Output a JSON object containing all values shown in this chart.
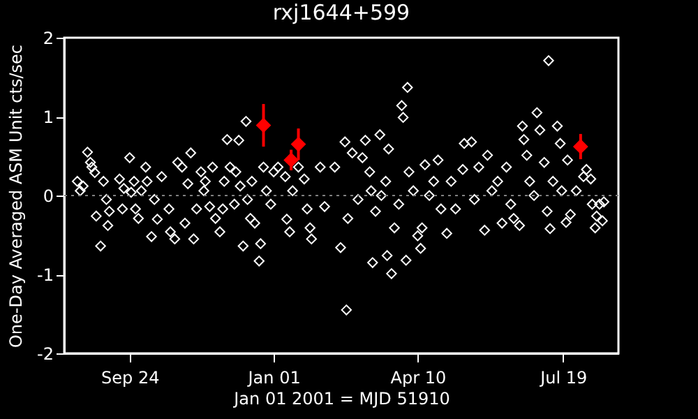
{
  "chart_data": {
    "type": "scatter",
    "title": "rxj1644+599",
    "xlabel": "Jan 01 2001 = MJD 51910",
    "ylabel": "One-Day Averaged ASM Unit cts/sec",
    "xlim": [
      "2000-08-10",
      "2001-08-26"
    ],
    "xticks": [
      {
        "value": "2000-09-24",
        "label": "Sep 24"
      },
      {
        "value": "2001-01-01",
        "label": "Jan 01"
      },
      {
        "value": "2001-04-10",
        "label": "Apr 10"
      },
      {
        "value": "2001-07-19",
        "label": "Jul 19"
      }
    ],
    "ylim": [
      -2,
      2
    ],
    "yticks": [
      -2,
      -1,
      0,
      1,
      2
    ],
    "marker": "diamond",
    "ref_lines": [
      {
        "axis": "y",
        "value": 0,
        "color": "#808080",
        "line_style": "dotted"
      }
    ],
    "series": [
      {
        "color": "#ffffff",
        "x": [
          "2000-08-19",
          "2000-08-21",
          "2000-08-23",
          "2000-08-26",
          "2000-08-28",
          "2000-08-29",
          "2000-08-31",
          "2000-09-01",
          "2000-09-04",
          "2000-09-06",
          "2000-09-08",
          "2000-09-09",
          "2000-09-10",
          "2000-09-17",
          "2000-09-19",
          "2000-09-20",
          "2000-09-24",
          "2000-09-25",
          "2000-09-27",
          "2000-09-28",
          "2000-09-30",
          "2000-10-02",
          "2000-10-05",
          "2000-10-06",
          "2000-10-09",
          "2000-10-11",
          "2000-10-13",
          "2000-10-16",
          "2000-10-21",
          "2000-10-22",
          "2000-10-25",
          "2000-10-27",
          "2000-10-30",
          "2000-11-01",
          "2000-11-03",
          "2000-11-05",
          "2000-11-07",
          "2000-11-09",
          "2000-11-12",
          "2000-11-14",
          "2000-11-15",
          "2000-11-18",
          "2000-11-20",
          "2000-11-22",
          "2000-11-25",
          "2000-11-27",
          "2000-11-28",
          "2000-11-30",
          "2000-12-02",
          "2000-12-05",
          "2000-12-06",
          "2000-12-08",
          "2000-12-09",
          "2000-12-11",
          "2000-12-13",
          "2000-12-14",
          "2000-12-16",
          "2000-12-17",
          "2000-12-19",
          "2000-12-22",
          "2000-12-23",
          "2000-12-25",
          "2000-12-27",
          "2000-12-30",
          "2001-01-01",
          "2001-01-04",
          "2001-01-09",
          "2001-01-10",
          "2001-01-12",
          "2001-01-14",
          "2001-01-18",
          "2001-01-22",
          "2001-01-24",
          "2001-01-26",
          "2001-01-27",
          "2001-02-02",
          "2001-02-05",
          "2001-02-12",
          "2001-02-16",
          "2001-02-19",
          "2001-02-20",
          "2001-02-21",
          "2001-02-24",
          "2001-02-28",
          "2001-03-03",
          "2001-03-05",
          "2001-03-08",
          "2001-03-09",
          "2001-03-10",
          "2001-03-12",
          "2001-03-15",
          "2001-03-16",
          "2001-03-19",
          "2001-03-20",
          "2001-03-21",
          "2001-03-23",
          "2001-03-25",
          "2001-03-28",
          "2001-03-30",
          "2001-03-31",
          "2001-04-03",
          "2001-04-02",
          "2001-04-04",
          "2001-04-07",
          "2001-04-10",
          "2001-04-12",
          "2001-04-13",
          "2001-04-15",
          "2001-04-18",
          "2001-04-21",
          "2001-04-24",
          "2001-04-26",
          "2001-04-30",
          "2001-05-03",
          "2001-05-06",
          "2001-05-11",
          "2001-05-12",
          "2001-05-17",
          "2001-05-19",
          "2001-05-22",
          "2001-05-26",
          "2001-05-28",
          "2001-05-31",
          "2001-06-04",
          "2001-06-07",
          "2001-06-10",
          "2001-06-13",
          "2001-06-15",
          "2001-06-19",
          "2001-06-21",
          "2001-06-22",
          "2001-06-24",
          "2001-06-26",
          "2001-06-29",
          "2001-07-01",
          "2001-07-03",
          "2001-07-06",
          "2001-07-08",
          "2001-07-09",
          "2001-07-10",
          "2001-07-12",
          "2001-07-15",
          "2001-07-17",
          "2001-07-18",
          "2001-07-21",
          "2001-07-22",
          "2001-07-24",
          "2001-07-28",
          "2001-08-02",
          "2001-08-04",
          "2001-08-07",
          "2001-08-08",
          "2001-08-10",
          "2001-08-11",
          "2001-08-13",
          "2001-08-15",
          "2001-08-16"
        ],
        "values": [
          0.18,
          0.06,
          0.12,
          0.55,
          0.42,
          0.36,
          0.29,
          -0.26,
          -0.64,
          0.18,
          -0.05,
          -0.38,
          -0.2,
          0.21,
          -0.17,
          0.09,
          0.48,
          0.04,
          0.18,
          -0.17,
          -0.29,
          0.06,
          0.36,
          0.18,
          -0.52,
          -0.05,
          -0.3,
          0.24,
          -0.17,
          -0.46,
          -0.55,
          0.42,
          0.36,
          -0.35,
          0.15,
          0.54,
          -0.55,
          -0.17,
          0.3,
          0.06,
          0.18,
          -0.14,
          0.36,
          -0.29,
          -0.46,
          -0.17,
          0.18,
          0.71,
          0.36,
          -0.11,
          0.3,
          0.7,
          0.12,
          -0.64,
          0.94,
          -0.05,
          -0.29,
          0.18,
          -0.35,
          -0.83,
          -0.61,
          0.36,
          0.06,
          -0.11,
          0.3,
          0.36,
          0.24,
          -0.3,
          -0.46,
          0.06,
          0.36,
          0.21,
          -0.17,
          -0.41,
          -0.55,
          0.36,
          -0.14,
          0.36,
          -0.66,
          0.68,
          -1.45,
          -0.29,
          0.54,
          -0.05,
          0.48,
          0.7,
          0.3,
          0.06,
          -0.85,
          -0.2,
          0.77,
          0.0,
          0.18,
          -0.76,
          0.59,
          -0.99,
          -0.41,
          -0.11,
          1.14,
          0.99,
          1.37,
          -0.82,
          0.3,
          0.06,
          -0.51,
          -0.67,
          -0.41,
          0.39,
          0.0,
          0.18,
          0.45,
          -0.17,
          -0.48,
          0.18,
          -0.17,
          0.33,
          0.66,
          0.68,
          -0.05,
          0.36,
          -0.44,
          0.51,
          0.06,
          0.18,
          -0.35,
          0.36,
          -0.11,
          -0.29,
          -0.38,
          0.88,
          0.71,
          0.51,
          0.18,
          0.0,
          1.05,
          0.83,
          0.42,
          -0.2,
          1.71,
          -0.42,
          0.18,
          0.88,
          0.66,
          0.06,
          -0.34,
          0.45,
          -0.24,
          0.06,
          0.24,
          0.33,
          0.21,
          -0.11,
          -0.41,
          -0.26,
          -0.11,
          -0.32,
          -0.08
        ]
      },
      {
        "color": "#ff0000",
        "x": [
          "2000-12-25",
          "2001-01-13",
          "2001-01-18",
          "2001-07-31"
        ],
        "values": [
          0.89,
          0.45,
          0.65,
          0.62
        ],
        "errors": [
          0.27,
          0.13,
          0.2,
          0.16
        ]
      }
    ]
  }
}
